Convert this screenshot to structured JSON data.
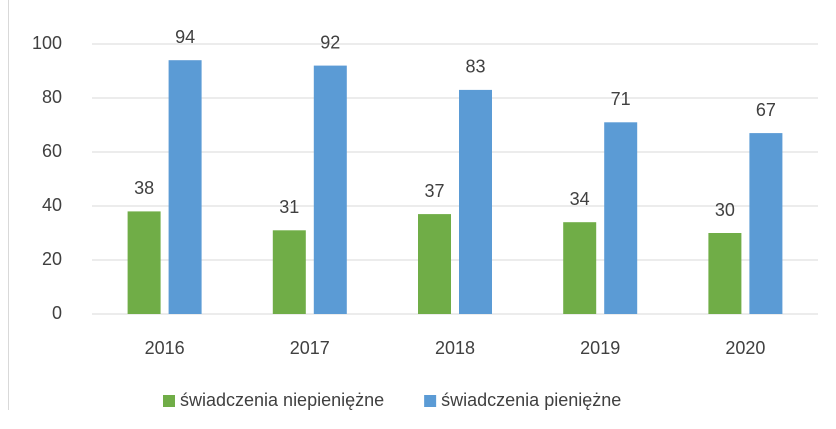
{
  "chart_data": {
    "type": "bar",
    "categories": [
      "2016",
      "2017",
      "2018",
      "2019",
      "2020"
    ],
    "series": [
      {
        "name": "świadczenia niepieniężne",
        "color": "#70ad47",
        "values": [
          38,
          31,
          37,
          34,
          30
        ]
      },
      {
        "name": "świadczenia pieniężne",
        "color": "#5b9bd5",
        "values": [
          94,
          92,
          83,
          71,
          67
        ]
      }
    ],
    "ylim": [
      0,
      100
    ],
    "yticks": [
      0,
      20,
      40,
      60,
      80,
      100
    ],
    "grid": true,
    "legend": "bottom"
  }
}
